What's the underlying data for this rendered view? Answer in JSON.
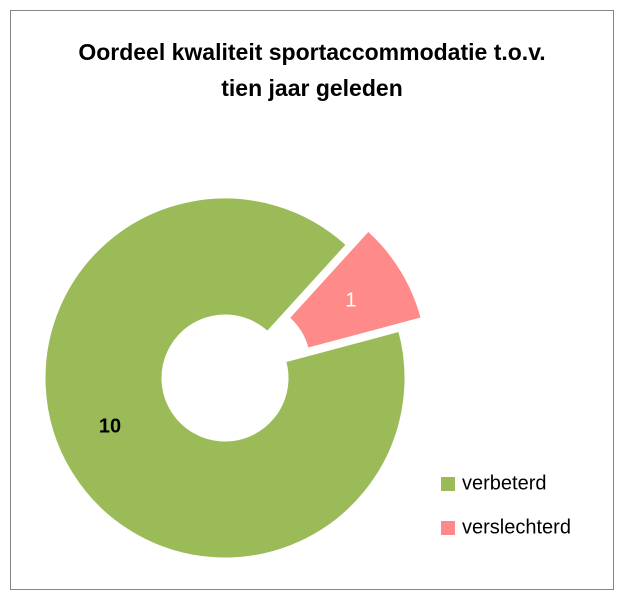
{
  "chart_data": {
    "type": "donut",
    "title": "Oordeel kwaliteit sportaccommodatie t.o.v. tien jaar geleden",
    "categories": [
      "verbeterd",
      "verslechterd"
    ],
    "values": [
      10,
      1
    ],
    "colors": [
      "#9bbb59",
      "#ff8a8a"
    ],
    "legend": "right"
  }
}
